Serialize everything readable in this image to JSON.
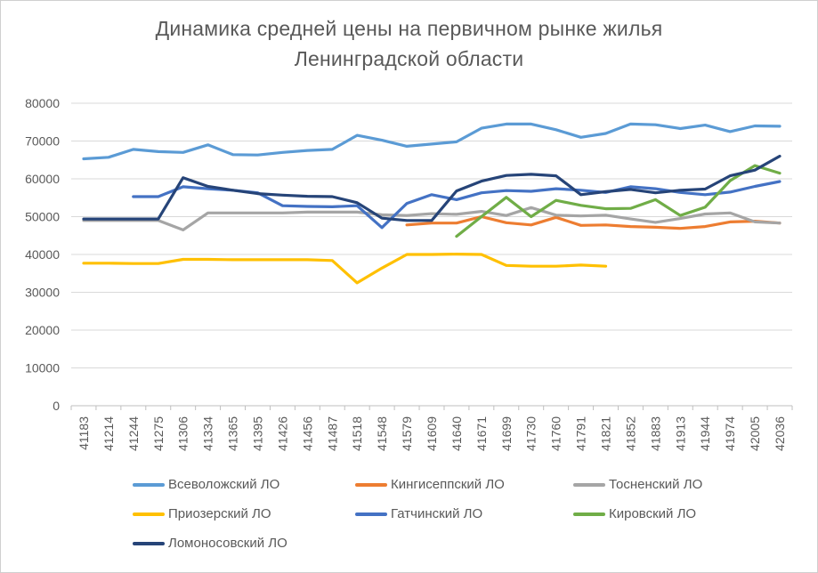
{
  "title": {
    "line1": "Динамика средней цены на первичном рынке жилья",
    "line2": "Ленинградской области",
    "color": "#595959"
  },
  "chart_data": {
    "type": "line",
    "title": "Динамика средней цены на первичном рынке жилья Ленинградской области",
    "xlabel": "",
    "ylabel": "",
    "grid": true,
    "legend_position": "bottom",
    "y_axis": {
      "min": 0,
      "max": 80000,
      "step": 10000,
      "tick_labels": [
        "0",
        "10000",
        "20000",
        "30000",
        "40000",
        "50000",
        "60000",
        "70000",
        "80000"
      ]
    },
    "categories": [
      "41183",
      "41214",
      "41244",
      "41275",
      "41306",
      "41334",
      "41365",
      "41395",
      "41426",
      "41456",
      "41487",
      "41518",
      "41548",
      "41579",
      "41609",
      "41640",
      "41671",
      "41699",
      "41730",
      "41760",
      "41791",
      "41821",
      "41852",
      "41883",
      "41913",
      "41944",
      "41974",
      "42005",
      "42036"
    ],
    "series": [
      {
        "id": "vsevolozhsky",
        "name": "Всеволожский ЛО",
        "color": "#5B9BD5",
        "values": [
          65300,
          65700,
          67800,
          67200,
          67000,
          69000,
          66400,
          66300,
          67000,
          67500,
          67800,
          71500,
          70200,
          68600,
          69200,
          69800,
          73400,
          74500,
          74500,
          73000,
          71000,
          72000,
          74500,
          74300,
          73300,
          74200,
          72500,
          74000,
          73900
        ]
      },
      {
        "id": "kingiseppsky",
        "name": "Кингисеппский ЛО",
        "color": "#ED7D31",
        "values": [
          null,
          null,
          null,
          null,
          null,
          null,
          null,
          null,
          null,
          null,
          null,
          null,
          null,
          47800,
          48300,
          48300,
          50000,
          48400,
          47800,
          49800,
          47700,
          47800,
          47400,
          47200,
          46900,
          47400,
          48600,
          48800,
          48300
        ]
      },
      {
        "id": "tosnensky",
        "name": "Тосненский ЛО",
        "color": "#A5A5A5",
        "values": [
          49000,
          49000,
          49000,
          49000,
          46500,
          51000,
          51000,
          51000,
          51000,
          51200,
          51200,
          51200,
          50500,
          50300,
          50800,
          50600,
          51400,
          50300,
          52400,
          50400,
          50200,
          50400,
          49400,
          48500,
          49500,
          50700,
          51000,
          48600,
          48300
        ]
      },
      {
        "id": "priozersky",
        "name": "Приозерский ЛО",
        "color": "#FFC000",
        "values": [
          37700,
          37700,
          37600,
          37600,
          38700,
          38700,
          38600,
          38600,
          38600,
          38600,
          38400,
          32500,
          36400,
          40000,
          40000,
          40100,
          40000,
          37100,
          36900,
          36900,
          37200,
          36900,
          null,
          null,
          null,
          null,
          null,
          null,
          null
        ]
      },
      {
        "id": "gatchinsky",
        "name": "Гатчинский ЛО",
        "color": "#4472C4",
        "values": [
          null,
          null,
          55300,
          55300,
          57900,
          57400,
          57000,
          56300,
          52900,
          52700,
          52600,
          52900,
          47100,
          53500,
          55800,
          54500,
          56300,
          56900,
          56700,
          57400,
          57000,
          56400,
          57900,
          57400,
          56400,
          55800,
          56500,
          58000,
          59300
        ]
      },
      {
        "id": "kirovsky",
        "name": "Кировский ЛО",
        "color": "#70AD47",
        "values": [
          null,
          null,
          null,
          null,
          null,
          null,
          null,
          null,
          null,
          null,
          null,
          null,
          null,
          null,
          null,
          44800,
          50000,
          55100,
          50000,
          54300,
          53000,
          52100,
          52200,
          54500,
          50300,
          52500,
          59500,
          63500,
          61500
        ]
      },
      {
        "id": "lomonosovsky",
        "name": "Ломоносовский ЛО",
        "color": "#264478",
        "values": [
          49400,
          49400,
          49400,
          49400,
          60300,
          58000,
          57000,
          56100,
          55700,
          55400,
          55300,
          53700,
          49600,
          49000,
          49000,
          56800,
          59400,
          60900,
          61200,
          60800,
          55800,
          56600,
          57200,
          56300,
          57000,
          57300,
          60800,
          62300,
          66000
        ]
      }
    ],
    "style": {
      "gridline_color": "#d9d9d9",
      "axis_color": "#bfbfbf",
      "label_color": "#595959",
      "line_width": 3.2
    }
  }
}
